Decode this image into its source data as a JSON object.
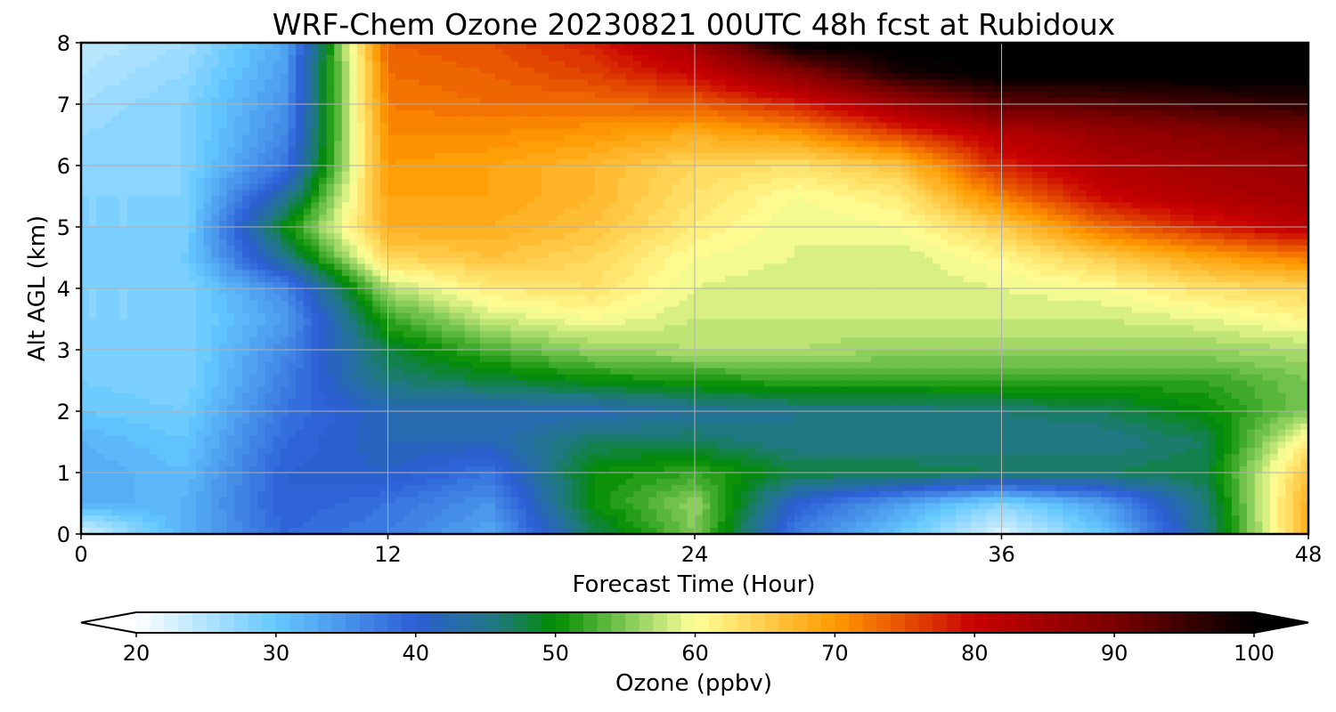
{
  "chart_data": {
    "type": "heatmap",
    "title": "WRF-Chem Ozone  20230821 00UTC 48h fcst at Rubidoux",
    "xlabel": "Forecast Time (Hour)",
    "ylabel": "Alt AGL (km)",
    "xlim": [
      0,
      48
    ],
    "ylim": [
      0,
      8
    ],
    "xticks": [
      0,
      12,
      24,
      36,
      48
    ],
    "yticks": [
      0,
      1,
      2,
      3,
      4,
      5,
      6,
      7,
      8
    ],
    "grid": true,
    "x_hours": [
      0,
      4,
      8,
      12,
      16,
      20,
      24,
      28,
      32,
      36,
      40,
      44,
      48
    ],
    "y_km": [
      0,
      0.5,
      1,
      1.5,
      2,
      2.5,
      3,
      3.5,
      4,
      4.5,
      5,
      5.5,
      6,
      6.5,
      7,
      7.5,
      8
    ],
    "z_ppbv": [
      [
        22,
        32,
        39,
        37,
        33,
        47,
        55,
        37,
        30,
        22,
        30,
        45,
        68
      ],
      [
        32,
        32,
        40,
        38,
        35,
        50,
        56,
        40,
        34,
        28,
        34,
        46,
        68
      ],
      [
        33,
        31,
        40,
        41,
        38,
        50,
        52,
        48,
        48,
        47,
        47,
        48,
        66
      ],
      [
        32,
        30,
        39,
        42,
        42,
        47,
        47,
        45,
        45,
        45,
        45,
        47,
        62
      ],
      [
        30,
        29,
        38,
        42,
        42,
        42,
        44,
        45,
        45,
        46,
        47,
        50,
        55
      ],
      [
        29,
        28,
        37,
        46,
        48,
        50,
        51,
        52,
        52,
        52,
        52,
        52,
        55
      ],
      [
        29,
        28,
        36,
        48,
        53,
        56,
        57,
        57,
        56,
        56,
        56,
        56,
        57
      ],
      [
        28,
        28,
        34,
        52,
        58,
        60,
        58,
        58,
        58,
        58,
        58,
        59,
        61
      ],
      [
        28,
        28,
        36,
        57,
        62,
        63,
        59,
        58,
        58,
        59,
        60,
        63,
        64
      ],
      [
        29,
        29,
        45,
        64,
        66,
        64,
        60,
        59,
        58,
        61,
        65,
        69,
        72
      ],
      [
        28,
        28,
        50,
        68,
        68,
        66,
        62,
        59,
        60,
        65,
        73,
        78,
        82
      ],
      [
        28,
        28,
        44,
        69,
        69,
        67,
        63,
        60,
        62,
        72,
        80,
        83,
        85
      ],
      [
        27,
        28,
        38,
        70,
        69,
        67,
        64,
        63,
        66,
        78,
        83,
        85,
        86
      ],
      [
        27,
        28,
        36,
        71,
        71,
        70,
        68,
        70,
        76,
        82,
        86,
        88,
        90
      ],
      [
        26,
        28,
        35,
        72,
        73,
        73,
        74,
        78,
        85,
        92,
        93,
        95,
        96
      ],
      [
        25,
        27,
        34,
        73,
        74,
        76,
        80,
        88,
        98,
        101,
        101,
        101,
        101
      ],
      [
        24,
        26,
        33,
        74,
        75,
        78,
        85,
        101,
        101,
        101,
        101,
        101,
        101
      ]
    ],
    "colorbar": {
      "label": "Ozone  (ppbv)",
      "range": [
        20,
        100
      ],
      "ticks": [
        20,
        30,
        40,
        50,
        60,
        70,
        80,
        90,
        100
      ],
      "extend": "both",
      "levels": 80,
      "stops": [
        [
          20,
          "#ffffff"
        ],
        [
          30,
          "#64c8ff"
        ],
        [
          40,
          "#2c5ed6"
        ],
        [
          46,
          "#1f7a7a"
        ],
        [
          50,
          "#008c00"
        ],
        [
          55,
          "#7dc855"
        ],
        [
          60,
          "#ffff96"
        ],
        [
          70,
          "#ff9a00"
        ],
        [
          75,
          "#e65000"
        ],
        [
          80,
          "#c80000"
        ],
        [
          90,
          "#7a0000"
        ],
        [
          100,
          "#000000"
        ]
      ]
    }
  }
}
